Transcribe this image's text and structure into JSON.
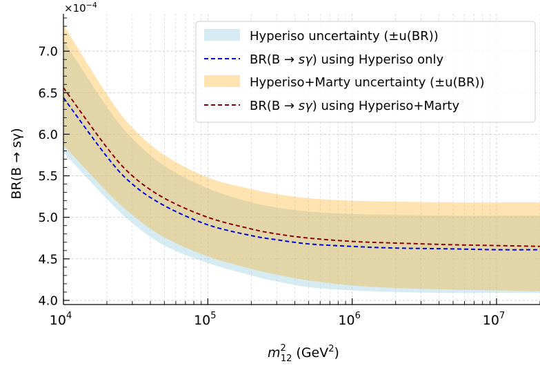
{
  "chart_data": {
    "type": "area",
    "title": "",
    "xlabel": {
      "main": "m",
      "sup": "2",
      "sub": "12",
      "unit_open": " (GeV",
      "unit_sup": "2",
      "unit_close": ")"
    },
    "ylabel": "BR(B → sγ)",
    "y_multiplier": {
      "base": "×10",
      "exp": "−4"
    },
    "x_scale": "log",
    "xlim": [
      10000,
      20000000
    ],
    "ylim": [
      3.95,
      7.45
    ],
    "y_ticks": [
      4.0,
      4.5,
      5.0,
      5.5,
      6.0,
      6.5,
      7.0
    ],
    "y_tick_labels": [
      "4.0",
      "4.5",
      "5.0",
      "5.5",
      "6.0",
      "6.5",
      "7.0"
    ],
    "x_ticks": [
      {
        "value": 10000,
        "base": "10",
        "exp": "4"
      },
      {
        "value": 100000,
        "base": "10",
        "exp": "5"
      },
      {
        "value": 1000000,
        "base": "10",
        "exp": "6"
      },
      {
        "value": 10000000,
        "base": "10",
        "exp": "7"
      }
    ],
    "grid": true,
    "legend_position": "top-right",
    "x": [
      10000,
      20000,
      30000,
      50000,
      100000,
      200000,
      300000,
      500000,
      1000000,
      2000000,
      5000000,
      10000000,
      20000000
    ],
    "series": [
      {
        "name": "Hyperiso uncertainty (±u(BR))",
        "kind": "band",
        "color": "#add8e6",
        "opacity": 0.5,
        "lower": [
          5.78,
          5.22,
          4.93,
          4.66,
          4.45,
          4.3,
          4.23,
          4.16,
          4.12,
          4.1,
          4.09,
          4.09,
          4.09
        ],
        "upper": [
          7.13,
          6.33,
          5.95,
          5.62,
          5.35,
          5.18,
          5.12,
          5.07,
          5.04,
          5.03,
          5.02,
          5.02,
          5.02
        ]
      },
      {
        "name": "BR(B→sγ) using Hyperiso only",
        "kind": "line",
        "color": "#0000dd",
        "dash": "6,4",
        "values": [
          6.44,
          5.73,
          5.4,
          5.14,
          4.91,
          4.78,
          4.73,
          4.68,
          4.65,
          4.63,
          4.62,
          4.61,
          4.61
        ]
      },
      {
        "name": "Hyperiso+Marty uncertainty (±u(BR))",
        "kind": "band",
        "color": "#ffa500",
        "opacity": 0.3,
        "lower": [
          5.87,
          5.31,
          5.03,
          4.76,
          4.53,
          4.38,
          4.31,
          4.24,
          4.18,
          4.15,
          4.13,
          4.12,
          4.11
        ],
        "upper": [
          7.32,
          6.48,
          6.08,
          5.75,
          5.48,
          5.34,
          5.28,
          5.23,
          5.2,
          5.19,
          5.18,
          5.18,
          5.18
        ]
      },
      {
        "name": "BR(B→sγ) using Hyperiso+Marty",
        "kind": "line",
        "color": "#8b0000",
        "dash": "6,4",
        "values": [
          6.56,
          5.84,
          5.5,
          5.23,
          5.0,
          4.86,
          4.8,
          4.75,
          4.71,
          4.69,
          4.67,
          4.66,
          4.65
        ]
      }
    ]
  },
  "legend": {
    "items": [
      {
        "pre": "Hyperiso uncertainty (±u(BR))",
        "ital": "",
        "post": ""
      },
      {
        "pre": "BR(B → ",
        "ital": "sγ",
        "post": ") using Hyperiso only"
      },
      {
        "pre": "Hyperiso+Marty uncertainty (±u(BR))",
        "ital": "",
        "post": ""
      },
      {
        "pre": "BR(B → ",
        "ital": "sγ",
        "post": ") using Hyperiso+Marty"
      }
    ]
  }
}
